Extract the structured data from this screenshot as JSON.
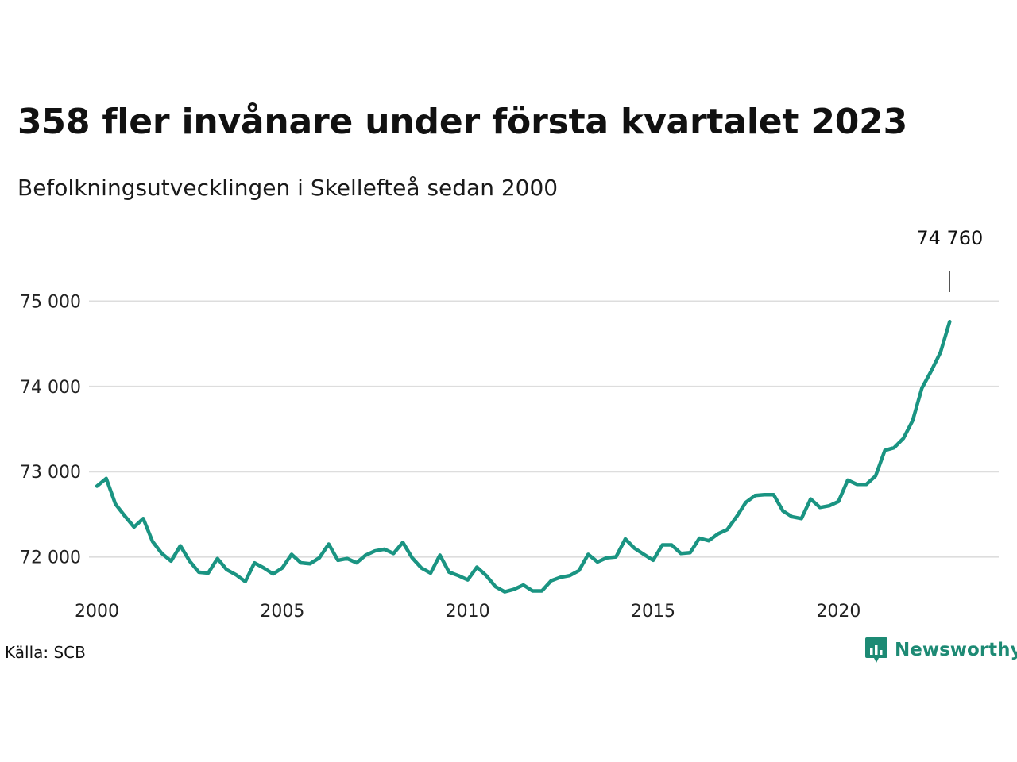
{
  "title": "358 fler invånare under första kvartalet 2023",
  "subtitle": "Befolkningsutvecklingen i Skellefteå sedan 2000",
  "source": "Källa: SCB",
  "brand": {
    "name": "Newsworthy",
    "icon": "newsworthy-logo-icon",
    "color": "#1d8a74"
  },
  "chart_data": {
    "type": "line",
    "x_tick_labels": [
      "2000",
      "2005",
      "2010",
      "2015",
      "2020"
    ],
    "x_ticks": [
      2000,
      2005,
      2010,
      2015,
      2020
    ],
    "y_tick_labels": [
      "75 000",
      "74 000",
      "73 000",
      "72 000"
    ],
    "y_ticks": [
      75000,
      74000,
      73000,
      72000
    ],
    "xlim": [
      2000,
      2024
    ],
    "ylim": [
      71400,
      75200
    ],
    "grid": "horizontal",
    "line_color": "#1a9482",
    "end_label": "74 760",
    "series": [
      {
        "x": [
          "2000-Q1",
          "2000-Q2",
          "2000-Q3",
          "2000-Q4",
          "2001-Q1",
          "2001-Q2",
          "2001-Q3",
          "2001-Q4",
          "2002-Q1",
          "2002-Q2",
          "2002-Q3",
          "2002-Q4",
          "2003-Q1",
          "2003-Q2",
          "2003-Q3",
          "2003-Q4",
          "2004-Q1",
          "2004-Q2",
          "2004-Q3",
          "2004-Q4",
          "2005-Q1",
          "2005-Q2",
          "2005-Q3",
          "2005-Q4",
          "2006-Q1",
          "2006-Q2",
          "2006-Q3",
          "2006-Q4",
          "2007-Q1",
          "2007-Q2",
          "2007-Q3",
          "2007-Q4",
          "2008-Q1",
          "2008-Q2",
          "2008-Q3",
          "2008-Q4",
          "2009-Q1",
          "2009-Q2",
          "2009-Q3",
          "2009-Q4",
          "2010-Q1",
          "2010-Q2",
          "2010-Q3",
          "2010-Q4",
          "2011-Q1",
          "2011-Q2",
          "2011-Q3",
          "2011-Q4",
          "2012-Q1",
          "2012-Q2",
          "2012-Q3",
          "2012-Q4",
          "2013-Q1",
          "2013-Q2",
          "2013-Q3",
          "2013-Q4",
          "2014-Q1",
          "2014-Q2",
          "2014-Q3",
          "2014-Q4",
          "2015-Q1",
          "2015-Q2",
          "2015-Q3",
          "2015-Q4",
          "2016-Q1",
          "2016-Q2",
          "2016-Q3",
          "2016-Q4",
          "2017-Q1",
          "2017-Q2",
          "2017-Q3",
          "2017-Q4",
          "2018-Q1",
          "2018-Q2",
          "2018-Q3",
          "2018-Q4",
          "2019-Q1",
          "2019-Q2",
          "2019-Q3",
          "2019-Q4",
          "2020-Q1",
          "2020-Q2",
          "2020-Q3",
          "2020-Q4",
          "2021-Q1",
          "2021-Q2",
          "2021-Q3",
          "2021-Q4",
          "2022-Q1",
          "2022-Q2",
          "2022-Q3",
          "2022-Q4",
          "2023-Q1"
        ],
        "values": [
          72830,
          72920,
          72620,
          72480,
          72350,
          72450,
          72180,
          72040,
          71950,
          72130,
          71950,
          71820,
          71810,
          71980,
          71850,
          71790,
          71710,
          71930,
          71870,
          71800,
          71870,
          72030,
          71930,
          71920,
          71990,
          72150,
          71960,
          71980,
          71930,
          72020,
          72070,
          72090,
          72040,
          72170,
          71990,
          71870,
          71810,
          72020,
          71820,
          71780,
          71730,
          71880,
          71780,
          71650,
          71590,
          71620,
          71670,
          71600,
          71600,
          71720,
          71760,
          71780,
          71840,
          72030,
          71940,
          71990,
          72000,
          72210,
          72100,
          72030,
          71960,
          72140,
          72140,
          72040,
          72050,
          72220,
          72190,
          72270,
          72320,
          72470,
          72640,
          72720,
          72730,
          72730,
          72540,
          72470,
          72450,
          72680,
          72580,
          72600,
          72650,
          72900,
          72850,
          72850,
          72950,
          73250,
          73280,
          73390,
          73600,
          73980,
          74180,
          74400,
          74760
        ]
      }
    ]
  }
}
